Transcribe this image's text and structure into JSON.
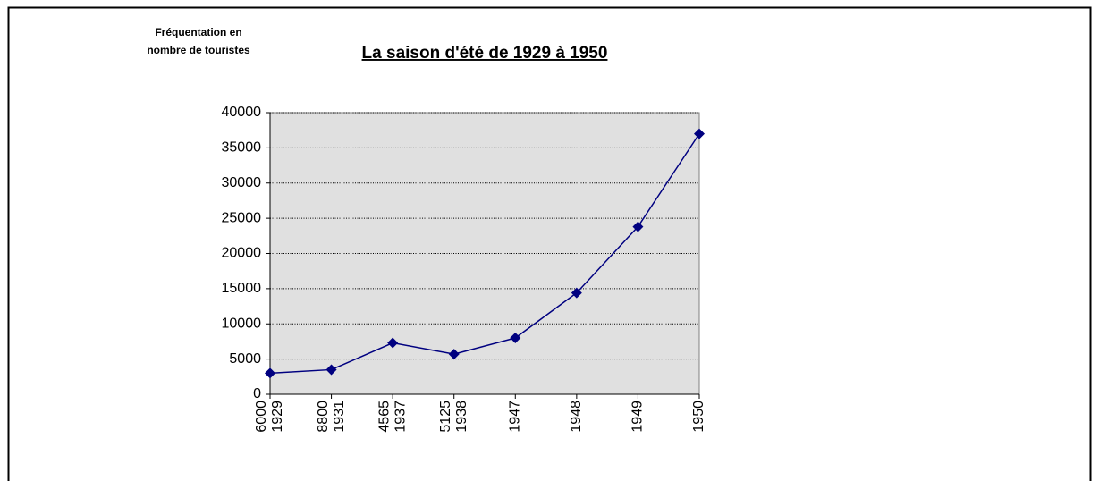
{
  "chart_data": {
    "type": "line",
    "title": "La saison d'été de 1929 à 1950",
    "ylabel": [
      "Fréquentation en",
      "nombre de touristes"
    ],
    "categories": [
      [
        "6000",
        "1929"
      ],
      [
        "8800",
        "1931"
      ],
      [
        "4565",
        "1937"
      ],
      [
        "5125",
        "1938"
      ],
      [
        "1947"
      ],
      [
        "1948"
      ],
      [
        "1949"
      ],
      [
        "1950"
      ]
    ],
    "series": [
      {
        "name": "Fréquentation",
        "color": "#000080",
        "values": [
          3000,
          3500,
          7300,
          5700,
          8000,
          14400,
          23800,
          37000
        ]
      }
    ],
    "ylim": [
      0,
      40000
    ],
    "yticks": [
      0,
      5000,
      10000,
      15000,
      20000,
      25000,
      30000,
      35000,
      40000
    ],
    "grid": true,
    "background": "#e0e0e0"
  }
}
